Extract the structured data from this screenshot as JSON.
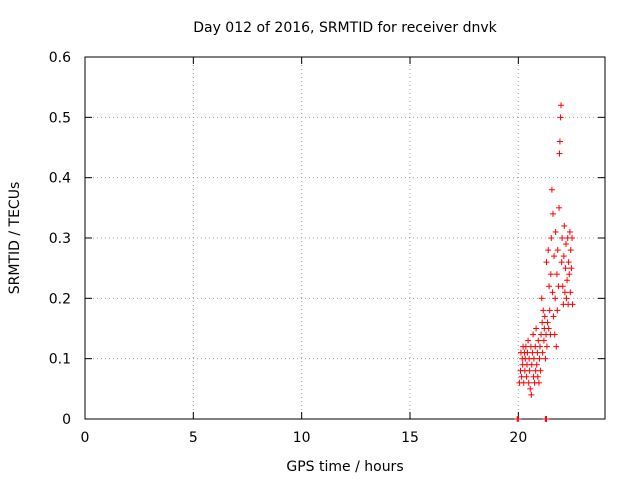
{
  "chart_data": {
    "type": "scatter",
    "title": "Day 012 of 2016, SRMTID for receiver dnvk",
    "xlabel": "GPS time / hours",
    "ylabel": "SRMTID / TECUs",
    "xlim": [
      0,
      24
    ],
    "ylim": [
      0,
      0.6
    ],
    "x_ticks": [
      "0",
      "5",
      "10",
      "15",
      "20"
    ],
    "y_ticks": [
      "0",
      "0.1",
      "0.2",
      "0.3",
      "0.4",
      "0.5",
      "0.6"
    ],
    "grid": true,
    "marker": "+",
    "marker_color": "#ff0000",
    "series": [
      {
        "name": "SRMTID",
        "points": [
          [
            19.95,
            0.0
          ],
          [
            20.0,
            0.0
          ],
          [
            21.25,
            0.0
          ],
          [
            21.3,
            0.0
          ],
          [
            20.05,
            0.06
          ],
          [
            20.1,
            0.08
          ],
          [
            20.12,
            0.11
          ],
          [
            20.15,
            0.07
          ],
          [
            20.18,
            0.1
          ],
          [
            20.2,
            0.09
          ],
          [
            20.22,
            0.12
          ],
          [
            20.25,
            0.06
          ],
          [
            20.28,
            0.11
          ],
          [
            20.3,
            0.08
          ],
          [
            20.32,
            0.1
          ],
          [
            20.35,
            0.12
          ],
          [
            20.38,
            0.07
          ],
          [
            20.4,
            0.09
          ],
          [
            20.42,
            0.11
          ],
          [
            20.45,
            0.13
          ],
          [
            20.48,
            0.06
          ],
          [
            20.5,
            0.1
          ],
          [
            20.52,
            0.08
          ],
          [
            20.55,
            0.05
          ],
          [
            20.58,
            0.12
          ],
          [
            20.6,
            0.04
          ],
          [
            20.62,
            0.09
          ],
          [
            20.65,
            0.11
          ],
          [
            20.68,
            0.14
          ],
          [
            20.7,
            0.07
          ],
          [
            20.72,
            0.1
          ],
          [
            20.75,
            0.06
          ],
          [
            20.78,
            0.12
          ],
          [
            20.8,
            0.08
          ],
          [
            20.82,
            0.15
          ],
          [
            20.85,
            0.09
          ],
          [
            20.88,
            0.11
          ],
          [
            20.9,
            0.07
          ],
          [
            20.92,
            0.13
          ],
          [
            20.95,
            0.06
          ],
          [
            20.98,
            0.1
          ],
          [
            21.0,
            0.12
          ],
          [
            21.02,
            0.08
          ],
          [
            21.05,
            0.14
          ],
          [
            21.08,
            0.2
          ],
          [
            21.1,
            0.16
          ],
          [
            21.12,
            0.11
          ],
          [
            21.15,
            0.18
          ],
          [
            21.18,
            0.13
          ],
          [
            21.2,
            0.15
          ],
          [
            21.22,
            0.17
          ],
          [
            21.25,
            0.1
          ],
          [
            21.28,
            0.14
          ],
          [
            21.3,
            0.26
          ],
          [
            21.32,
            0.12
          ],
          [
            21.35,
            0.16
          ],
          [
            21.38,
            0.28
          ],
          [
            21.4,
            0.15
          ],
          [
            21.42,
            0.22
          ],
          [
            21.45,
            0.18
          ],
          [
            21.48,
            0.14
          ],
          [
            21.5,
            0.24
          ],
          [
            21.52,
            0.3
          ],
          [
            21.55,
            0.38
          ],
          [
            21.58,
            0.21
          ],
          [
            21.6,
            0.34
          ],
          [
            21.62,
            0.17
          ],
          [
            21.65,
            0.27
          ],
          [
            21.68,
            0.14
          ],
          [
            21.7,
            0.2
          ],
          [
            21.72,
            0.31
          ],
          [
            21.75,
            0.12
          ],
          [
            21.78,
            0.24
          ],
          [
            21.8,
            0.18
          ],
          [
            21.82,
            0.28
          ],
          [
            21.85,
            0.22
          ],
          [
            21.88,
            0.35
          ],
          [
            21.9,
            0.44
          ],
          [
            21.92,
            0.46
          ],
          [
            21.95,
            0.5
          ],
          [
            21.97,
            0.52
          ],
          [
            22.0,
            0.26
          ],
          [
            22.02,
            0.3
          ],
          [
            22.05,
            0.22
          ],
          [
            22.08,
            0.19
          ],
          [
            22.1,
            0.27
          ],
          [
            22.12,
            0.32
          ],
          [
            22.15,
            0.21
          ],
          [
            22.18,
            0.25
          ],
          [
            22.2,
            0.29
          ],
          [
            22.22,
            0.2
          ],
          [
            22.25,
            0.23
          ],
          [
            22.28,
            0.3
          ],
          [
            22.3,
            0.19
          ],
          [
            22.32,
            0.26
          ],
          [
            22.35,
            0.24
          ],
          [
            22.38,
            0.31
          ],
          [
            22.4,
            0.21
          ],
          [
            22.42,
            0.28
          ],
          [
            22.45,
            0.25
          ],
          [
            22.48,
            0.3
          ],
          [
            22.5,
            0.19
          ]
        ]
      }
    ]
  }
}
